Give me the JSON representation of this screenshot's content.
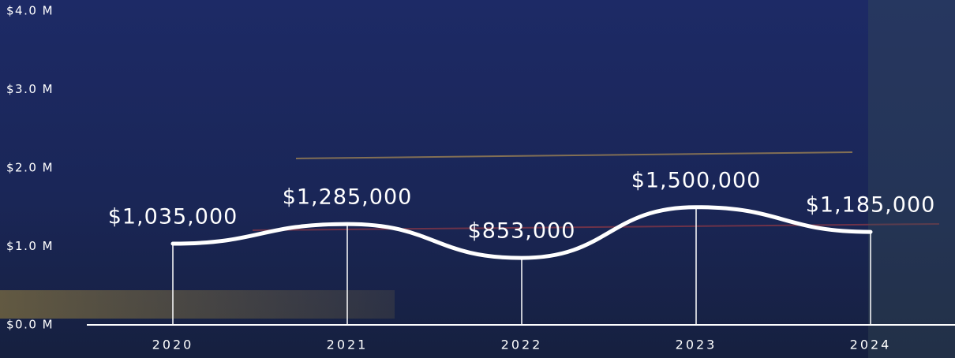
{
  "chart_data": {
    "type": "line",
    "categories": [
      "2020",
      "2021",
      "2022",
      "2023",
      "2024"
    ],
    "values": [
      1035000,
      1285000,
      853000,
      1500000,
      1185000
    ],
    "value_labels": [
      "$1,035,000",
      "$1,285,000",
      "$853,000",
      "$1,500,000",
      "$1,185,000"
    ],
    "color": "#ffffff",
    "ylim": [
      0,
      4000000
    ],
    "yticks": [
      {
        "value": 0,
        "label": "$0.0 M"
      },
      {
        "value": 1000000,
        "label": "$1.0 M"
      },
      {
        "value": 2000000,
        "label": "$2.0 M"
      },
      {
        "value": 3000000,
        "label": "$3.0 M"
      },
      {
        "value": 4000000,
        "label": "$4.0 M"
      }
    ]
  }
}
